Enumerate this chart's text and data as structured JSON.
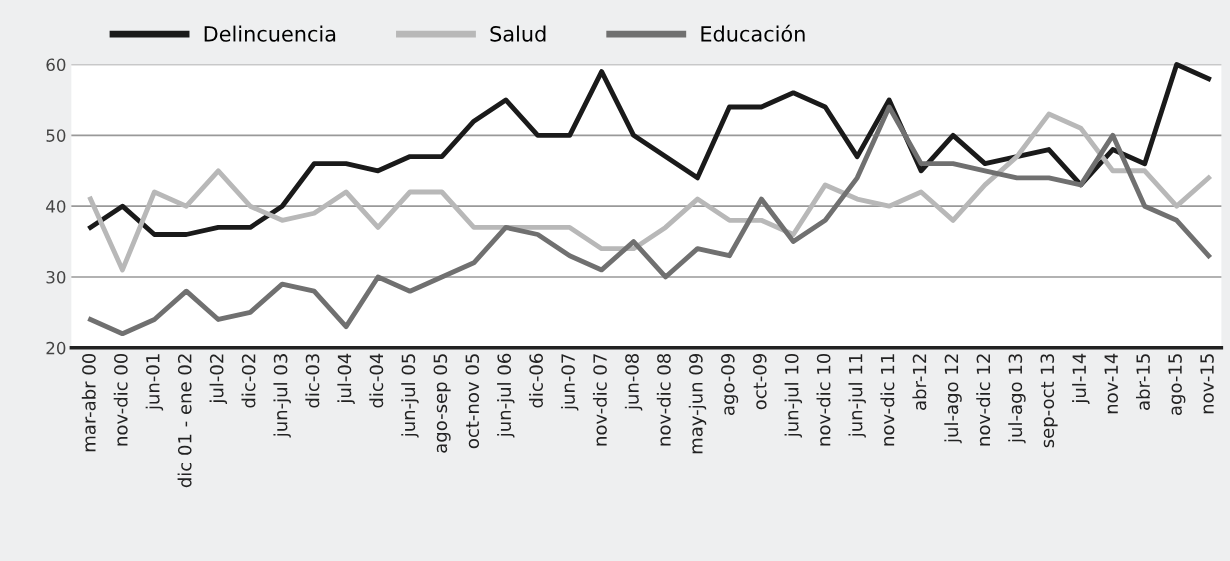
{
  "chart_data": {
    "type": "line",
    "categories": [
      "mar-abr 00",
      "nov-dic 00",
      "jun-01",
      "dic 01 - ene 02",
      "jul-02",
      "dic-02",
      "jun-jul 03",
      "dic-03",
      "jul-04",
      "dic-04",
      "jun-jul 05",
      "ago-sep 05",
      "oct-nov 05",
      "jun-jul 06",
      "dic-06",
      "jun-07",
      "nov-dic 07",
      "jun-08",
      "nov-dic 08",
      "may-jun 09",
      "ago-09",
      "oct-09",
      "jun-jul 10",
      "nov-dic 10",
      "jun-jul 11",
      "nov-dic 11",
      "abr-12",
      "jul-ago 12",
      "nov-dic 12",
      "jul-ago 13",
      "sep-oct 13",
      "jul-14",
      "nov-14",
      "abr-15",
      "ago-15",
      "nov-15"
    ],
    "series": [
      {
        "name": "Delincuencia",
        "color": "#1a1a1a",
        "values": [
          37,
          40,
          36,
          36,
          37,
          37,
          40,
          46,
          46,
          45,
          47,
          47,
          52,
          55,
          50,
          50,
          59,
          50,
          47,
          44,
          54,
          54,
          56,
          54,
          47,
          55,
          45,
          50,
          46,
          47,
          48,
          43,
          48,
          46,
          60,
          58
        ]
      },
      {
        "name": "Salud",
        "color": "#b8b8b8",
        "values": [
          41,
          31,
          42,
          40,
          45,
          40,
          38,
          39,
          42,
          37,
          42,
          42,
          37,
          37,
          37,
          37,
          34,
          34,
          37,
          41,
          38,
          38,
          36,
          43,
          41,
          40,
          42,
          38,
          43,
          47,
          53,
          51,
          45,
          45,
          40,
          44
        ]
      },
      {
        "name": "Educación",
        "color": "#707070",
        "values": [
          24,
          22,
          24,
          28,
          24,
          25,
          29,
          28,
          23,
          30,
          28,
          30,
          32,
          37,
          36,
          33,
          31,
          35,
          30,
          34,
          33,
          41,
          35,
          38,
          44,
          54,
          46,
          46,
          45,
          44,
          44,
          43,
          50,
          40,
          38,
          33
        ]
      }
    ],
    "ylim": [
      20,
      60
    ],
    "yticks": [
      20,
      30,
      40,
      50,
      60
    ],
    "grid": "y",
    "legend": "top left",
    "marker": "none",
    "line_style": "solid"
  }
}
